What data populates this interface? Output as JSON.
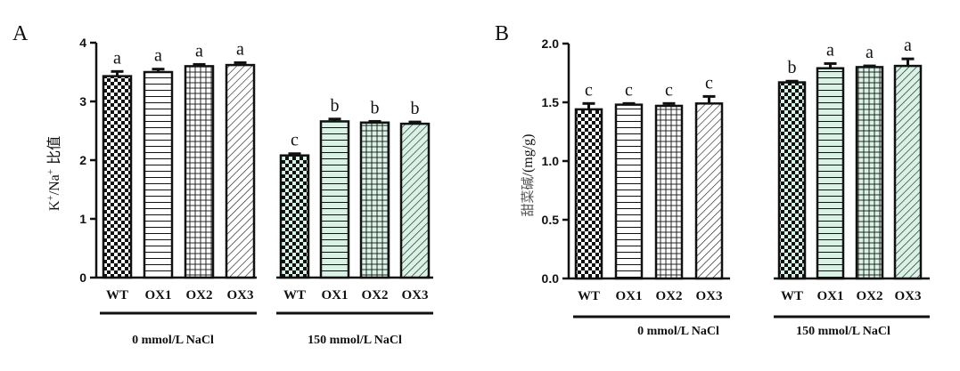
{
  "chart_data": [
    {
      "type": "bar",
      "panel_label": "A",
      "ylabel_parts": {
        "k": "K",
        "k_sup": "+",
        "slash_na": "/Na",
        "na_sup": "+",
        "suffix": " 比值"
      },
      "ylim": [
        0,
        4
      ],
      "yticks": [
        "0",
        "1",
        "2",
        "3",
        "4"
      ],
      "grid": false,
      "categories": [
        "WT",
        "OX1",
        "OX2",
        "OX3",
        "WT",
        "OX1",
        "OX2",
        "OX3"
      ],
      "groups": [
        "0 mmol/L NaCl",
        "150 mmol/L NaCl"
      ],
      "values": [
        3.43,
        3.5,
        3.6,
        3.62,
        2.08,
        2.66,
        2.64,
        2.62
      ],
      "errors": [
        0.08,
        0.05,
        0.03,
        0.04,
        0.03,
        0.04,
        0.02,
        0.03
      ],
      "sig_letters": [
        "a",
        "a",
        "a",
        "a",
        "c",
        "b",
        "b",
        "b"
      ],
      "patterns": [
        "checker",
        "hlines",
        "grid",
        "diag",
        "checker",
        "hlines",
        "grid",
        "diag"
      ],
      "fills": [
        "#ffffff",
        "#ffffff",
        "#ffffff",
        "#ffffff",
        "#d9f2e6",
        "#d9f2e6",
        "#d9f2e6",
        "#d9f2e6"
      ]
    },
    {
      "type": "bar",
      "panel_label": "B",
      "ylabel_parts": {
        "cn": "甜菜碱",
        "unit": "/(mg/g)"
      },
      "ylim": [
        0,
        2.0
      ],
      "yticks": [
        "0.0",
        "0.5",
        "1.0",
        "1.5",
        "2.0"
      ],
      "grid": false,
      "categories": [
        "WT",
        "OX1",
        "OX2",
        "OX3",
        "WT",
        "OX1",
        "OX2",
        "OX3"
      ],
      "groups": [
        "0 mmol/L NaCl",
        "150 mmol/L NaCl"
      ],
      "values": [
        1.44,
        1.48,
        1.47,
        1.49,
        1.67,
        1.79,
        1.8,
        1.81
      ],
      "errors": [
        0.05,
        0.01,
        0.02,
        0.06,
        0.01,
        0.04,
        0.01,
        0.06
      ],
      "sig_letters": [
        "c",
        "c",
        "c",
        "c",
        "b",
        "a",
        "a",
        "a"
      ],
      "patterns": [
        "checker",
        "hlines",
        "grid",
        "diag",
        "checker",
        "hlines",
        "grid",
        "diag"
      ],
      "fills": [
        "#ffffff",
        "#ffffff",
        "#ffffff",
        "#ffffff",
        "#d9f2e6",
        "#d9f2e6",
        "#d9f2e6",
        "#d9f2e6"
      ]
    }
  ]
}
